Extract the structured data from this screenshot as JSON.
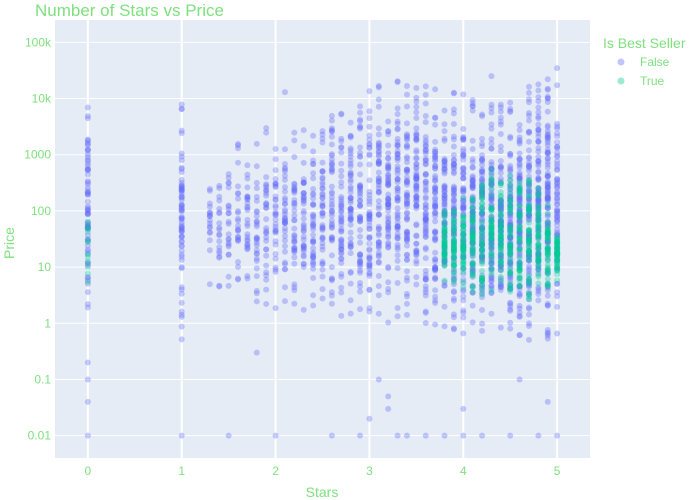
{
  "colors": {
    "text": "#7fe07f",
    "plot_bg": "#e5ecf6",
    "grid": "#ffffff",
    "false_marker": "#636efa",
    "true_marker": "#00cc96"
  },
  "chart_data": {
    "type": "scatter",
    "title": "Number of Stars vs Price",
    "xlabel": "Stars",
    "ylabel": "Price",
    "xlim": [
      -0.35,
      5.35
    ],
    "x_ticks": [
      0,
      1,
      2,
      3,
      4,
      5
    ],
    "y_scale": "log",
    "ylim": [
      0.004,
      250000
    ],
    "y_ticks": [
      {
        "value": 0.01,
        "label": "0.01"
      },
      {
        "value": 0.1,
        "label": "0.1"
      },
      {
        "value": 1,
        "label": "1"
      },
      {
        "value": 10,
        "label": "10"
      },
      {
        "value": 100,
        "label": "100"
      },
      {
        "value": 1000,
        "label": "1000"
      },
      {
        "value": 10000,
        "label": "10k"
      },
      {
        "value": 100000,
        "label": "100k"
      }
    ],
    "grid": true,
    "legend": {
      "title": "Is Best Seller",
      "placement": "top-right",
      "entries": [
        "False",
        "True"
      ]
    },
    "series": [
      {
        "name": "False",
        "color": "#636efa",
        "price_range_by_stars": [
          {
            "x": 0,
            "y_min": 0.6,
            "y_max": 20000
          },
          {
            "x": 1,
            "y_min": 0.5,
            "y_max": 10000
          },
          {
            "x": 1.3,
            "y_min": 4,
            "y_max": 350
          },
          {
            "x": 1.5,
            "y_min": 2,
            "y_max": 1800
          },
          {
            "x": 2,
            "y_min": 1.5,
            "y_max": 3500
          },
          {
            "x": 2.5,
            "y_min": 1.4,
            "y_max": 5000
          },
          {
            "x": 3,
            "y_min": 1,
            "y_max": 25000
          },
          {
            "x": 3.5,
            "y_min": 0.8,
            "y_max": 30000
          },
          {
            "x": 4,
            "y_min": 0.6,
            "y_max": 12000
          },
          {
            "x": 4.5,
            "y_min": 0.5,
            "y_max": 10000
          },
          {
            "x": 5,
            "y_min": 0.5,
            "y_max": 36000
          }
        ],
        "outliers": [
          {
            "x": 0,
            "y": 0.01
          },
          {
            "x": 0,
            "y": 0.04
          },
          {
            "x": 0,
            "y": 0.1
          },
          {
            "x": 0,
            "y": 0.2
          },
          {
            "x": 1,
            "y": 0.01
          },
          {
            "x": 1.5,
            "y": 0.01
          },
          {
            "x": 1.8,
            "y": 0.3
          },
          {
            "x": 2,
            "y": 0.01
          },
          {
            "x": 2.1,
            "y": 13000
          },
          {
            "x": 2.6,
            "y": 0.01
          },
          {
            "x": 2.9,
            "y": 0.01
          },
          {
            "x": 3,
            "y": 0.02
          },
          {
            "x": 3.1,
            "y": 0.1
          },
          {
            "x": 3.2,
            "y": 0.05
          },
          {
            "x": 3.2,
            "y": 0.03
          },
          {
            "x": 3.3,
            "y": 0.01
          },
          {
            "x": 3.4,
            "y": 0.01
          },
          {
            "x": 3.6,
            "y": 0.01
          },
          {
            "x": 3.8,
            "y": 0.01
          },
          {
            "x": 4,
            "y": 0.03
          },
          {
            "x": 4,
            "y": 0.01
          },
          {
            "x": 4.2,
            "y": 0.01
          },
          {
            "x": 4.3,
            "y": 25000
          },
          {
            "x": 4.5,
            "y": 0.01
          },
          {
            "x": 4.6,
            "y": 0.1
          },
          {
            "x": 4.8,
            "y": 0.01
          },
          {
            "x": 4.9,
            "y": 0.04
          },
          {
            "x": 5,
            "y": 0.01
          }
        ]
      },
      {
        "name": "True",
        "color": "#00cc96",
        "price_range_by_stars": [
          {
            "x": 0,
            "y_min": 5,
            "y_max": 100
          },
          {
            "x": 3.8,
            "y_min": 5,
            "y_max": 120
          },
          {
            "x": 4.0,
            "y_min": 3,
            "y_max": 300
          },
          {
            "x": 4.2,
            "y_min": 2,
            "y_max": 500
          },
          {
            "x": 4.4,
            "y_min": 2,
            "y_max": 800
          },
          {
            "x": 4.6,
            "y_min": 2,
            "y_max": 900
          },
          {
            "x": 4.8,
            "y_min": 2,
            "y_max": 500
          },
          {
            "x": 5.0,
            "y_min": 5,
            "y_max": 60
          }
        ]
      }
    ]
  }
}
